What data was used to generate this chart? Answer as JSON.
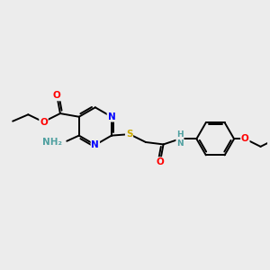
{
  "bg_color": "#ececec",
  "atom_colors": {
    "C": "#000000",
    "N": "#0000ff",
    "O": "#ff0000",
    "S": "#ccaa00",
    "H": "#4fa0a0"
  },
  "bond_color": "#000000",
  "bond_width": 1.4,
  "figsize": [
    3.0,
    3.0
  ],
  "dpi": 100
}
